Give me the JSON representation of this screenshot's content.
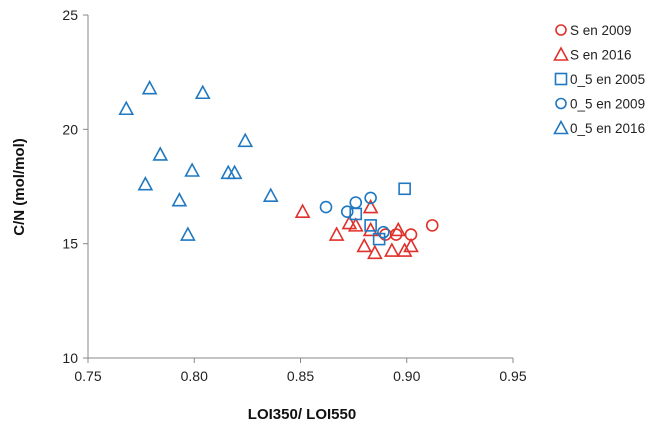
{
  "chart_data": {
    "type": "scatter",
    "title": "",
    "xlabel": "LOI350/ LOI550",
    "ylabel": "C/N (mol/mol)",
    "xlim": [
      0.75,
      0.95
    ],
    "ylim": [
      10,
      25
    ],
    "xticks": [
      0.75,
      0.8,
      0.85,
      0.9,
      0.95
    ],
    "xtick_labels": [
      "0.75",
      "0.80",
      "0.85",
      "0.90",
      "0.95"
    ],
    "yticks": [
      10,
      15,
      20,
      25
    ],
    "ytick_labels": [
      "10",
      "15",
      "20",
      "25"
    ],
    "grid": false,
    "legend_position": "right",
    "series": [
      {
        "name": "S en 2009",
        "marker": "circle",
        "color": "#e0302a",
        "points": [
          [
            0.89,
            15.4
          ],
          [
            0.895,
            15.4
          ],
          [
            0.902,
            15.4
          ],
          [
            0.912,
            15.8
          ]
        ]
      },
      {
        "name": "S en 2016",
        "marker": "triangle",
        "color": "#e0302a",
        "points": [
          [
            0.851,
            16.4
          ],
          [
            0.867,
            15.4
          ],
          [
            0.873,
            15.9
          ],
          [
            0.876,
            15.8
          ],
          [
            0.88,
            14.9
          ],
          [
            0.883,
            16.6
          ],
          [
            0.883,
            15.6
          ],
          [
            0.885,
            14.6
          ],
          [
            0.893,
            14.7
          ],
          [
            0.896,
            15.6
          ],
          [
            0.899,
            14.7
          ],
          [
            0.902,
            14.9
          ]
        ]
      },
      {
        "name": "0_5 en 2005",
        "marker": "square",
        "color": "#1f78c1",
        "points": [
          [
            0.876,
            16.3
          ],
          [
            0.883,
            15.8
          ],
          [
            0.887,
            15.2
          ],
          [
            0.899,
            17.4
          ]
        ]
      },
      {
        "name": "0_5 en 2009",
        "marker": "circle",
        "color": "#1f78c1",
        "points": [
          [
            0.862,
            16.6
          ],
          [
            0.872,
            16.4
          ],
          [
            0.876,
            16.8
          ],
          [
            0.883,
            17.0
          ],
          [
            0.889,
            15.5
          ]
        ]
      },
      {
        "name": "0_5 en 2016",
        "marker": "triangle",
        "color": "#1f78c1",
        "points": [
          [
            0.768,
            20.9
          ],
          [
            0.777,
            17.6
          ],
          [
            0.779,
            21.8
          ],
          [
            0.784,
            18.9
          ],
          [
            0.793,
            16.9
          ],
          [
            0.797,
            15.4
          ],
          [
            0.799,
            18.2
          ],
          [
            0.804,
            21.6
          ],
          [
            0.816,
            18.1
          ],
          [
            0.819,
            18.1
          ],
          [
            0.824,
            19.5
          ],
          [
            0.836,
            17.1
          ]
        ]
      }
    ]
  }
}
